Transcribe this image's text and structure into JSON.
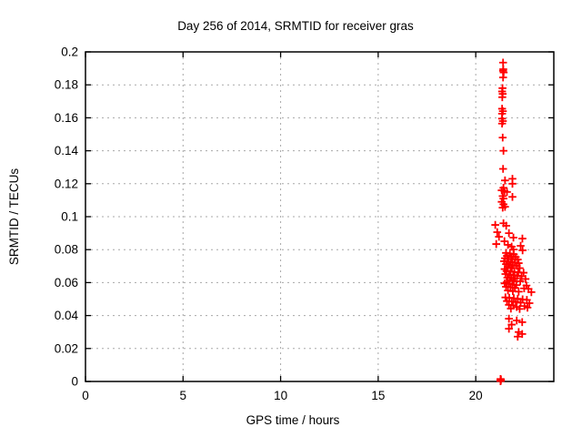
{
  "window": {
    "background": "#ffffff"
  },
  "chart_data": {
    "type": "scatter",
    "title": "Day 256 of 2014, SRMTID for receiver gras",
    "xlabel": "GPS time / hours",
    "ylabel": "SRMTID / TECUs",
    "xlim": [
      0,
      24
    ],
    "ylim": [
      0,
      0.2
    ],
    "xticks": {
      "values": [
        0,
        5,
        10,
        15,
        20
      ],
      "labels": [
        "0",
        "5",
        "10",
        "15",
        "20"
      ]
    },
    "yticks": {
      "values": [
        0,
        0.02,
        0.04,
        0.06,
        0.08,
        0.1,
        0.12,
        0.14,
        0.16,
        0.18,
        0.2
      ],
      "labels": [
        "0",
        "0.02",
        "0.04",
        "0.06",
        "0.08",
        "0.1",
        "0.12",
        "0.14",
        "0.16",
        "0.18",
        "0.2"
      ]
    },
    "grid": true,
    "grid_color": "#a8a8a8",
    "border_color": "#000000",
    "legend": "none",
    "marker": "plus",
    "marker_color": "#ff0000",
    "series": [
      {
        "name": "SRMTID",
        "points": [
          [
            21.4,
            0.1935
          ],
          [
            21.41,
            0.1895
          ],
          [
            21.4,
            0.1885
          ],
          [
            21.43,
            0.1875
          ],
          [
            21.4,
            0.1845
          ],
          [
            21.37,
            0.178
          ],
          [
            21.35,
            0.176
          ],
          [
            21.38,
            0.1745
          ],
          [
            21.36,
            0.1725
          ],
          [
            21.35,
            0.1655
          ],
          [
            21.39,
            0.164
          ],
          [
            21.35,
            0.1625
          ],
          [
            21.35,
            0.1595
          ],
          [
            21.39,
            0.158
          ],
          [
            21.35,
            0.1565
          ],
          [
            21.38,
            0.148
          ],
          [
            21.42,
            0.14
          ],
          [
            21.4,
            0.129
          ],
          [
            21.88,
            0.123
          ],
          [
            21.5,
            0.122
          ],
          [
            21.88,
            0.12
          ],
          [
            21.42,
            0.1175
          ],
          [
            21.33,
            0.116
          ],
          [
            21.47,
            0.1155
          ],
          [
            21.6,
            0.115
          ],
          [
            21.38,
            0.1125
          ],
          [
            21.88,
            0.112
          ],
          [
            21.42,
            0.111
          ],
          [
            21.33,
            0.109
          ],
          [
            21.42,
            0.1075
          ],
          [
            21.5,
            0.106
          ],
          [
            21.38,
            0.1055
          ],
          [
            21.42,
            0.096
          ],
          [
            21.0,
            0.095
          ],
          [
            21.56,
            0.0945
          ],
          [
            21.1,
            0.0906
          ],
          [
            21.7,
            0.09
          ],
          [
            21.19,
            0.0878
          ],
          [
            21.93,
            0.0873
          ],
          [
            22.39,
            0.0867
          ],
          [
            21.47,
            0.0851
          ],
          [
            21.05,
            0.0834
          ],
          [
            21.65,
            0.0829
          ],
          [
            22.3,
            0.0823
          ],
          [
            21.84,
            0.0818
          ],
          [
            21.93,
            0.0801
          ],
          [
            22.4,
            0.0796
          ],
          [
            21.55,
            0.078
          ],
          [
            21.75,
            0.0775
          ],
          [
            21.95,
            0.0772
          ],
          [
            21.6,
            0.0762
          ],
          [
            21.82,
            0.0758
          ],
          [
            22.05,
            0.0755
          ],
          [
            21.5,
            0.0748
          ],
          [
            21.68,
            0.0745
          ],
          [
            21.88,
            0.0742
          ],
          [
            22.15,
            0.074
          ],
          [
            21.45,
            0.073
          ],
          [
            21.62,
            0.0728
          ],
          [
            21.8,
            0.0725
          ],
          [
            22.0,
            0.0722
          ],
          [
            22.2,
            0.0718
          ],
          [
            21.55,
            0.0712
          ],
          [
            21.72,
            0.0708
          ],
          [
            21.9,
            0.0705
          ],
          [
            22.1,
            0.0702
          ],
          [
            21.65,
            0.0695
          ],
          [
            21.85,
            0.069
          ],
          [
            22.25,
            0.0688
          ],
          [
            21.48,
            0.0682
          ],
          [
            21.58,
            0.067
          ],
          [
            21.78,
            0.0668
          ],
          [
            21.98,
            0.0665
          ],
          [
            22.18,
            0.0662
          ],
          [
            22.45,
            0.066
          ],
          [
            21.52,
            0.0652
          ],
          [
            21.7,
            0.0648
          ],
          [
            21.92,
            0.0645
          ],
          [
            22.12,
            0.0642
          ],
          [
            22.35,
            0.0638
          ],
          [
            21.62,
            0.063
          ],
          [
            21.82,
            0.0628
          ],
          [
            22.02,
            0.0625
          ],
          [
            22.55,
            0.0622
          ],
          [
            21.75,
            0.0615
          ],
          [
            21.95,
            0.0612
          ],
          [
            22.28,
            0.0608
          ],
          [
            21.58,
            0.0602
          ],
          [
            21.48,
            0.0595
          ],
          [
            21.68,
            0.0592
          ],
          [
            21.88,
            0.0588
          ],
          [
            22.08,
            0.0585
          ],
          [
            22.6,
            0.0582
          ],
          [
            21.55,
            0.0575
          ],
          [
            21.78,
            0.0572
          ],
          [
            22.0,
            0.0568
          ],
          [
            22.48,
            0.0565
          ],
          [
            22.7,
            0.0562
          ],
          [
            21.65,
            0.0552
          ],
          [
            21.9,
            0.0548
          ],
          [
            22.2,
            0.0545
          ],
          [
            22.85,
            0.0542
          ],
          [
            21.52,
            0.051
          ],
          [
            21.72,
            0.0508
          ],
          [
            21.95,
            0.0505
          ],
          [
            22.15,
            0.0502
          ],
          [
            22.4,
            0.0498
          ],
          [
            22.62,
            0.0495
          ],
          [
            21.6,
            0.0488
          ],
          [
            21.85,
            0.0485
          ],
          [
            22.05,
            0.0482
          ],
          [
            22.3,
            0.0478
          ],
          [
            22.75,
            0.0475
          ],
          [
            21.7,
            0.0465
          ],
          [
            21.92,
            0.0462
          ],
          [
            22.5,
            0.0458
          ],
          [
            22.1,
            0.0452
          ],
          [
            22.65,
            0.0448
          ],
          [
            21.8,
            0.0442
          ],
          [
            22.25,
            0.044
          ],
          [
            21.7,
            0.0381
          ],
          [
            22.1,
            0.037
          ],
          [
            22.38,
            0.036
          ],
          [
            21.84,
            0.0345
          ],
          [
            21.7,
            0.032
          ],
          [
            22.2,
            0.03
          ],
          [
            22.38,
            0.0288
          ],
          [
            22.15,
            0.0272
          ],
          [
            21.27,
            0.0015
          ],
          [
            21.28,
            0.0012
          ],
          [
            21.27,
            0.0008
          ],
          [
            21.29,
            0.001
          ],
          [
            21.27,
            0.0002
          ],
          [
            21.28,
            0.0005
          ]
        ]
      }
    ]
  }
}
